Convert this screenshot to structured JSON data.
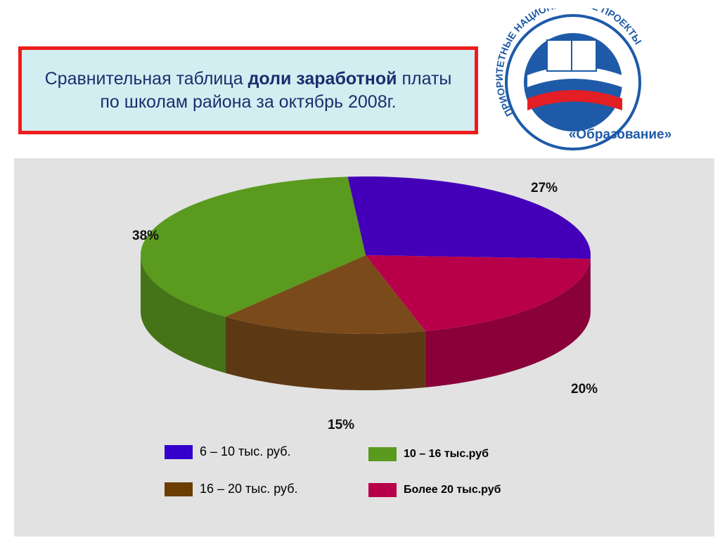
{
  "title": {
    "part1": "Сравнительная таблица ",
    "bold1": "доли заработной",
    "part2": " платы по школам района за октябрь 2008г."
  },
  "logo": {
    "arc_text": "ПРИОРИТЕТНЫЕ НАЦИОНАЛЬНЫЕ ПРОЕКТЫ",
    "sub_text": "«Образование»",
    "color": "#1e5aa8"
  },
  "chart_data": {
    "type": "pie",
    "style": "3d",
    "slices": [
      {
        "label": "6 – 10 тыс. руб.",
        "value": 27,
        "display": "27%",
        "color": "#4400b8"
      },
      {
        "label": "Более 20  тыс.руб",
        "value": 20,
        "display": "20%",
        "color": "#b8004a"
      },
      {
        "label": "16 – 20 тыс. руб.",
        "value": 15,
        "display": "15%",
        "color": "#7a4a1a"
      },
      {
        "label": "10 – 16 тыс.руб",
        "value": 38,
        "display": "38%",
        "color": "#5a9a1e"
      }
    ],
    "legend": [
      {
        "label": "6 – 10 тыс. руб.",
        "color": "#3300cc"
      },
      {
        "label": "10 – 16 тыс.руб",
        "color": "#5a9a1e"
      },
      {
        "label": "16 – 20 тыс. руб.",
        "color": "#6b3d00"
      },
      {
        "label": "Более 20  тыс.руб",
        "color": "#b8004a"
      }
    ]
  }
}
